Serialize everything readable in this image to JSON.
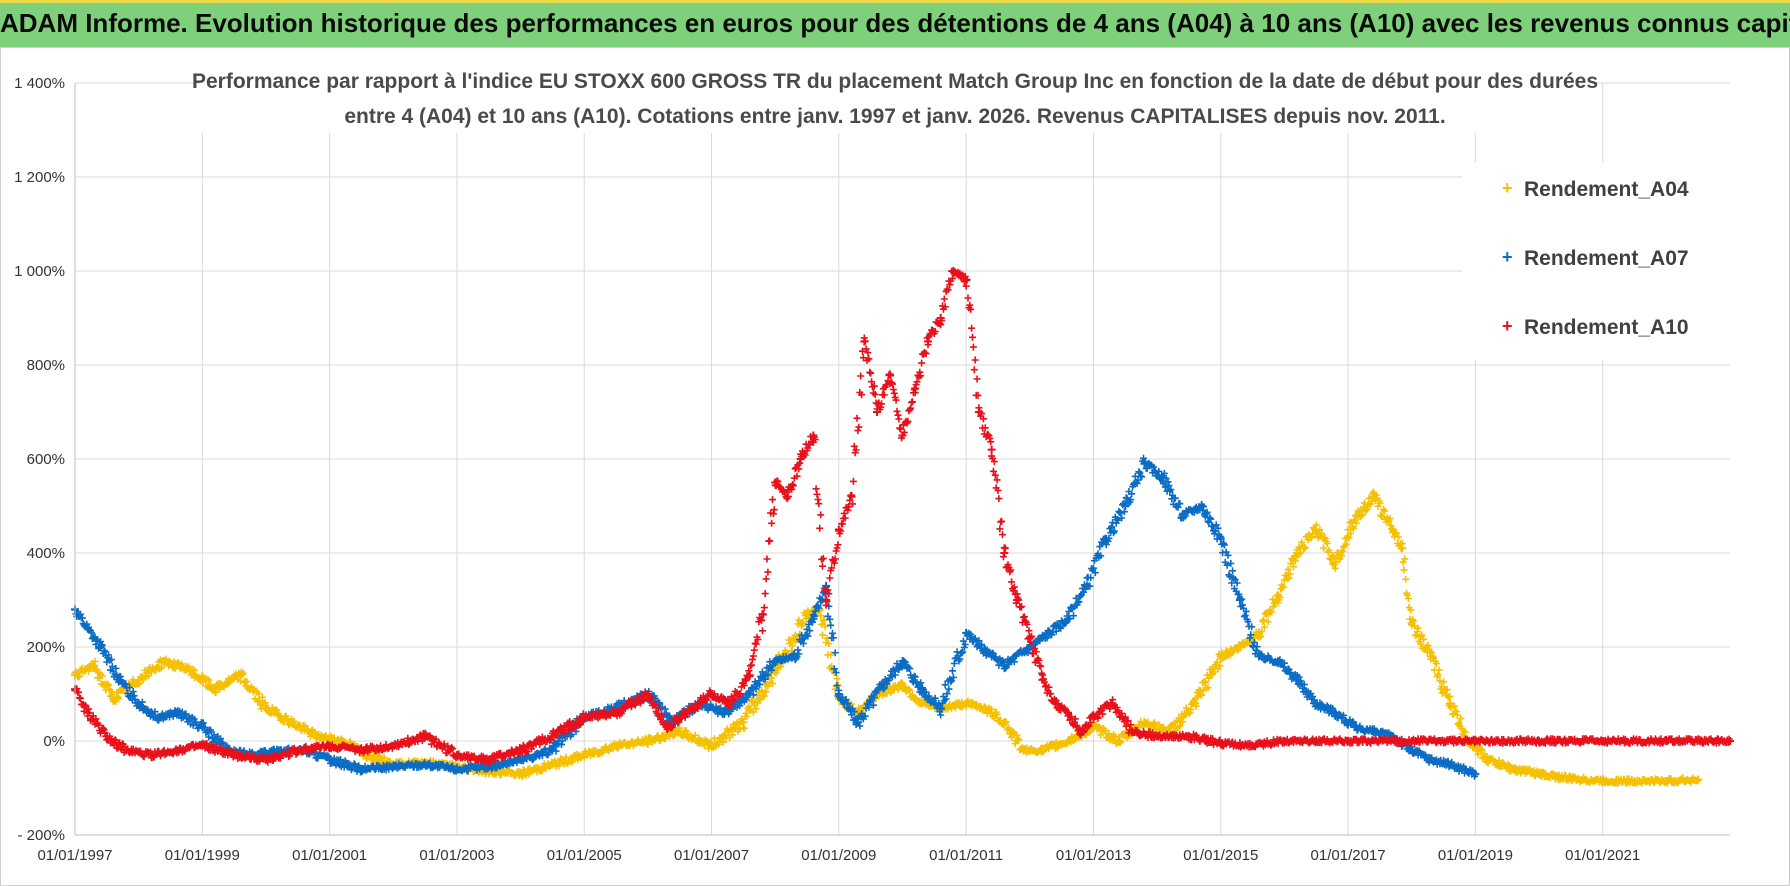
{
  "banner": {
    "title": "ADAM Informe. Evolution historique des performances en euros pour des détentions de 4 ans (A04) à 10 ans (A10) avec les revenus connus capitalisés"
  },
  "colors": {
    "banner_bg": "#7fd07a",
    "A04": "#f5c000",
    "A07": "#0a6cc4",
    "A10": "#e8101a",
    "grid": "#d9d9d9"
  },
  "chart_data": {
    "type": "scatter",
    "title_line1": "Performance par rapport à l'indice EU STOXX 600 GROSS TR  du placement Match Group Inc en fonction de la date de début pour des durées",
    "title_line2": "entre 4 (A04) et 10 ans (A10). Cotations entre janv. 1997 et janv. 2026. Revenus CAPITALISES depuis nov. 2011.",
    "xlabel": "",
    "ylabel": "",
    "xlim": [
      1997.0,
      2023.0
    ],
    "ylim": [
      -200,
      1400
    ],
    "y_ticks": [
      -200,
      0,
      200,
      400,
      600,
      800,
      1000,
      1200,
      1400
    ],
    "y_tick_labels": [
      "- 200%",
      "0%",
      "200%",
      "400%",
      "600%",
      "800%",
      "1 000%",
      "1 200%",
      "1 400%"
    ],
    "x_ticks": [
      1997,
      1999,
      2001,
      2003,
      2005,
      2007,
      2009,
      2011,
      2013,
      2015,
      2017,
      2019,
      2021
    ],
    "x_tick_labels": [
      "01/01/1997",
      "01/01/1999",
      "01/01/2001",
      "01/01/2003",
      "01/01/2005",
      "01/01/2007",
      "01/01/2009",
      "01/01/2011",
      "01/01/2013",
      "01/01/2015",
      "01/01/2017",
      "01/01/2019",
      "01/01/2021"
    ],
    "legend_position": "top-right",
    "series": [
      {
        "name": "Rendement_A04",
        "key": "A04",
        "x": [
          1997.0,
          1997.3,
          1997.6,
          1998.0,
          1998.4,
          1998.8,
          1999.2,
          1999.6,
          2000.0,
          2000.4,
          2000.8,
          2001.2,
          2001.6,
          2002.0,
          2002.5,
          2003.0,
          2003.5,
          2004.0,
          2004.5,
          2005.0,
          2005.5,
          2006.0,
          2006.5,
          2007.0,
          2007.5,
          2008.0,
          2008.5,
          2008.7,
          2009.0,
          2009.3,
          2009.6,
          2010.0,
          2010.3,
          2010.6,
          2011.0,
          2011.3,
          2011.6,
          2011.9,
          2012.2,
          2012.6,
          2013.0,
          2013.4,
          2013.8,
          2014.2,
          2014.6,
          2015.0,
          2015.3,
          2015.6,
          2015.9,
          2016.2,
          2016.5,
          2016.8,
          2017.1,
          2017.4,
          2017.7,
          2017.85,
          2018.0,
          2018.3,
          2018.6,
          2018.9,
          2019.2,
          2019.6,
          2020.0,
          2020.5,
          2021.0,
          2021.5,
          2022.0,
          2022.5
        ],
        "y": [
          140,
          160,
          90,
          130,
          170,
          150,
          110,
          140,
          70,
          40,
          10,
          0,
          -30,
          -50,
          -45,
          -55,
          -65,
          -70,
          -50,
          -30,
          -10,
          0,
          20,
          -10,
          40,
          150,
          270,
          280,
          90,
          60,
          100,
          120,
          80,
          70,
          80,
          70,
          40,
          -20,
          -20,
          0,
          30,
          0,
          40,
          20,
          80,
          180,
          200,
          230,
          310,
          400,
          450,
          380,
          470,
          520,
          450,
          410,
          250,
          180,
          80,
          0,
          -40,
          -60,
          -70,
          -80,
          -85,
          -85,
          -85,
          -82
        ]
      },
      {
        "name": "Rendement_A07",
        "key": "A07",
        "x": [
          1997.0,
          1997.2,
          1997.4,
          1997.7,
          1998.0,
          1998.3,
          1998.6,
          1999.0,
          1999.4,
          1999.8,
          2000.2,
          2000.6,
          2001.0,
          2001.5,
          2002.0,
          2002.5,
          2003.0,
          2003.5,
          2004.0,
          2004.5,
          2005.0,
          2005.5,
          2006.0,
          2006.4,
          2006.8,
          2007.2,
          2007.6,
          2008.0,
          2008.3,
          2008.6,
          2008.8,
          2009.0,
          2009.3,
          2009.7,
          2010.0,
          2010.3,
          2010.6,
          2011.0,
          2011.3,
          2011.6,
          2012.0,
          2012.3,
          2012.6,
          2012.9,
          2013.2,
          2013.5,
          2013.8,
          2014.1,
          2014.4,
          2014.7,
          2015.0,
          2015.3,
          2015.6,
          2015.9,
          2016.2,
          2016.5,
          2016.8,
          2017.1,
          2017.4,
          2017.7,
          2018.0,
          2018.3,
          2018.6,
          2019.0
        ],
        "y": [
          280,
          240,
          200,
          130,
          80,
          50,
          60,
          30,
          -20,
          -30,
          -20,
          -20,
          -40,
          -60,
          -55,
          -50,
          -60,
          -55,
          -40,
          -20,
          50,
          70,
          100,
          40,
          80,
          60,
          100,
          170,
          180,
          260,
          330,
          100,
          40,
          120,
          170,
          110,
          70,
          230,
          190,
          160,
          200,
          230,
          260,
          330,
          430,
          500,
          590,
          560,
          480,
          500,
          430,
          300,
          180,
          170,
          130,
          80,
          60,
          30,
          20,
          10,
          -20,
          -40,
          -50,
          -70
        ]
      },
      {
        "name": "Rendement_A10",
        "key": "A10",
        "x": [
          1997.0,
          1997.2,
          1997.5,
          1997.8,
          1998.2,
          1998.6,
          1999.0,
          1999.5,
          2000.0,
          2000.5,
          2001.0,
          2001.5,
          2002.0,
          2002.5,
          2003.0,
          2003.5,
          2004.0,
          2004.5,
          2005.0,
          2005.5,
          2006.0,
          2006.3,
          2006.6,
          2007.0,
          2007.3,
          2007.6,
          2007.8,
          2008.0,
          2008.2,
          2008.4,
          2008.6,
          2008.8,
          2009.0,
          2009.2,
          2009.4,
          2009.6,
          2009.8,
          2010.0,
          2010.2,
          2010.4,
          2010.6,
          2010.8,
          2011.0,
          2011.2,
          2011.4,
          2011.6,
          2011.8,
          2012.0,
          2012.2,
          2012.4,
          2012.6,
          2012.8,
          2013.0,
          2013.3,
          2013.6,
          2014.0,
          2014.5,
          2015.0,
          2015.5,
          2016.0,
          2016.5,
          2017.0,
          2018.0,
          2019.0,
          2020.0,
          2021.0,
          2022.0,
          2023.0
        ],
        "y": [
          110,
          60,
          10,
          -20,
          -30,
          -20,
          -10,
          -30,
          -40,
          -20,
          -10,
          -20,
          -10,
          10,
          -30,
          -40,
          -20,
          10,
          50,
          60,
          100,
          30,
          60,
          100,
          80,
          140,
          270,
          550,
          520,
          600,
          650,
          300,
          450,
          520,
          850,
          700,
          780,
          650,
          750,
          850,
          900,
          1000,
          980,
          700,
          620,
          400,
          300,
          220,
          130,
          80,
          60,
          20,
          50,
          80,
          20,
          10,
          10,
          -5,
          -10,
          0,
          0,
          0,
          0,
          0,
          0,
          0,
          0,
          0
        ]
      }
    ]
  }
}
